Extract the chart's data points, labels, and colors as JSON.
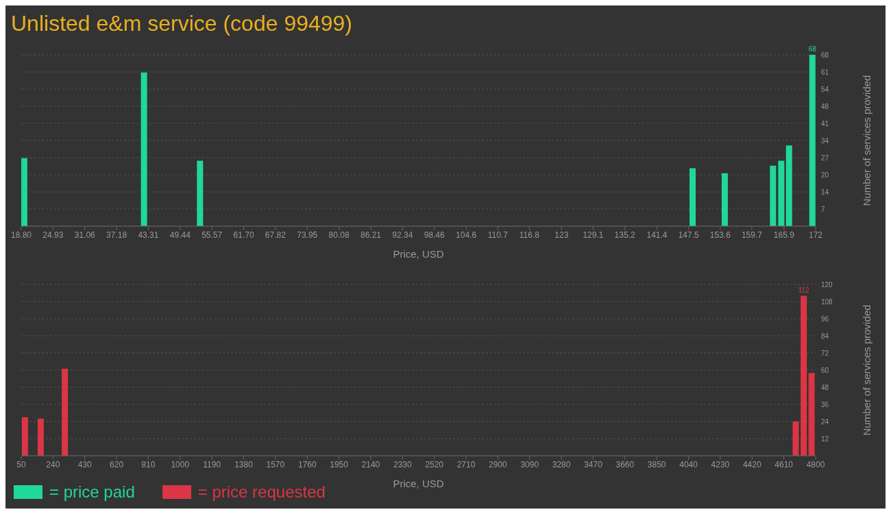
{
  "chart_data": [
    {
      "type": "bar",
      "title": "Unlisted e&m service (code 99499)",
      "xlabel": "Price, USD",
      "ylabel": "Number of services provided",
      "x": [
        19.4,
        42.5,
        53.3,
        148.3,
        154.5,
        163.8,
        165.4,
        166.9,
        171.4
      ],
      "series": [
        {
          "name": "= price paid",
          "color": "#20d89a",
          "values": [
            27,
            61,
            26,
            23,
            21,
            24,
            26,
            32,
            68
          ],
          "value_labels": [
            null,
            null,
            null,
            null,
            null,
            null,
            null,
            null,
            "68"
          ]
        }
      ],
      "xlim": [
        18.8,
        172
      ],
      "xticks": [
        {
          "value": 18.8,
          "label": "18.80"
        },
        24.93,
        31.06,
        37.18,
        43.31,
        49.44,
        55.57,
        {
          "value": 61.7,
          "label": "61.70"
        },
        67.82,
        73.95,
        80.08,
        86.21,
        92.34,
        98.46,
        104.6,
        110.7,
        116.8,
        123,
        129.1,
        135.2,
        141.4,
        147.5,
        153.6,
        159.7,
        165.9,
        172
      ],
      "ylim": [
        0,
        68
      ],
      "yticks": [
        {
          "value": 6.8,
          "label": "7"
        },
        {
          "value": 13.6,
          "label": "14"
        },
        {
          "value": 20.4,
          "label": "20"
        },
        {
          "value": 27.2,
          "label": "27"
        },
        34,
        {
          "value": 40.8,
          "label": "41"
        },
        {
          "value": 47.6,
          "label": "48"
        },
        {
          "value": 54.4,
          "label": "54"
        },
        {
          "value": 61.2,
          "label": "61"
        },
        68
      ],
      "grid": "y",
      "legend": "bottom left"
    },
    {
      "type": "bar",
      "xlabel": "Price, USD",
      "ylabel": "Number of services provided",
      "x": [
        73,
        167.5,
        311.6,
        4682,
        4730,
        4777
      ],
      "series": [
        {
          "name": "= price requested",
          "color": "#dc3545",
          "values": [
            27,
            26,
            61,
            24,
            112,
            58
          ],
          "value_labels": [
            null,
            null,
            null,
            null,
            "112",
            null
          ]
        }
      ],
      "xlim": [
        50,
        4800
      ],
      "xticks": [
        50,
        240,
        430,
        620,
        810,
        1000,
        1190,
        1380,
        1570,
        1760,
        1950,
        2140,
        2330,
        2520,
        2710,
        2900,
        3090,
        3280,
        3470,
        3660,
        3850,
        4040,
        4230,
        4420,
        4610,
        4800
      ],
      "ylim": [
        0,
        120
      ],
      "yticks": [
        12,
        24,
        36,
        48,
        60,
        72,
        84,
        96,
        108,
        120
      ],
      "grid": "y",
      "legend": "bottom left"
    }
  ]
}
